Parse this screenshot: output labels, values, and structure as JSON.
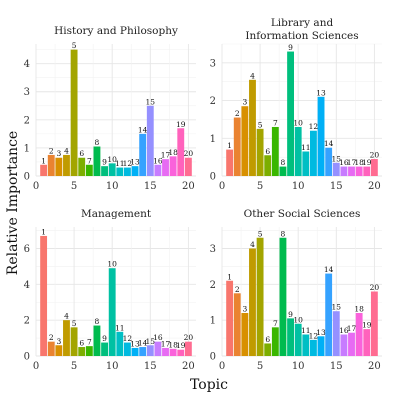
{
  "figure": {
    "xlabel": "Topic",
    "ylabel": "Relative Importance"
  },
  "chart_data": [
    {
      "type": "bar",
      "title": "History and Philosophy",
      "title_lines": [
        "History and Philosophy"
      ],
      "x": [
        1,
        2,
        3,
        4,
        5,
        6,
        7,
        8,
        9,
        10,
        11,
        12,
        13,
        14,
        15,
        16,
        17,
        18,
        19,
        20
      ],
      "values": [
        0.4,
        0.75,
        0.65,
        0.75,
        4.5,
        0.65,
        0.4,
        1.05,
        0.35,
        0.45,
        0.3,
        0.3,
        0.35,
        1.5,
        2.5,
        0.4,
        0.6,
        0.7,
        1.7,
        0.65
      ],
      "xlim": [
        0,
        21
      ],
      "xticks": [
        0,
        5,
        10,
        15,
        20
      ],
      "ylim": [
        0,
        4.7
      ],
      "yticks": [
        0,
        1,
        2,
        3,
        4
      ],
      "grid": true
    },
    {
      "type": "bar",
      "title": "Library and Information Sciences",
      "title_lines": [
        "Library and",
        "Information Sciences"
      ],
      "x": [
        1,
        2,
        3,
        4,
        5,
        6,
        7,
        8,
        9,
        10,
        11,
        12,
        13,
        14,
        15,
        16,
        17,
        18,
        19,
        20
      ],
      "values": [
        0.7,
        1.55,
        1.85,
        2.55,
        1.25,
        0.55,
        1.3,
        0.25,
        3.3,
        1.3,
        0.65,
        1.2,
        2.1,
        0.75,
        0.35,
        0.25,
        0.25,
        0.25,
        0.25,
        0.45
      ],
      "xlim": [
        0,
        21
      ],
      "xticks": [
        0,
        5,
        10,
        15,
        20
      ],
      "ylim": [
        0,
        3.5
      ],
      "yticks": [
        0,
        1,
        2,
        3
      ],
      "grid": true
    },
    {
      "type": "bar",
      "title": "Management",
      "title_lines": [
        "Management"
      ],
      "x": [
        1,
        2,
        3,
        4,
        5,
        6,
        7,
        8,
        9,
        10,
        11,
        12,
        13,
        14,
        15,
        16,
        17,
        18,
        19,
        20
      ],
      "values": [
        6.7,
        0.8,
        0.6,
        2.0,
        1.6,
        0.5,
        0.55,
        1.7,
        0.75,
        4.9,
        1.35,
        0.75,
        0.45,
        0.5,
        0.6,
        0.8,
        0.45,
        0.4,
        0.35,
        0.8
      ],
      "xlim": [
        0,
        21
      ],
      "xticks": [
        0,
        5,
        10,
        15,
        20
      ],
      "ylim": [
        0,
        7.2
      ],
      "yticks": [
        0,
        2,
        4,
        6
      ],
      "grid": true
    },
    {
      "type": "bar",
      "title": "Other Social Sciences",
      "title_lines": [
        "Other Social Sciences"
      ],
      "x": [
        1,
        2,
        3,
        4,
        5,
        6,
        7,
        8,
        9,
        10,
        11,
        12,
        13,
        14,
        15,
        16,
        17,
        18,
        19,
        20
      ],
      "values": [
        2.1,
        1.75,
        1.2,
        3.0,
        3.3,
        0.35,
        0.8,
        3.3,
        1.05,
        0.9,
        0.6,
        0.45,
        0.55,
        2.3,
        1.25,
        0.6,
        0.65,
        1.2,
        0.75,
        1.8
      ],
      "xlim": [
        0,
        21
      ],
      "xticks": [
        0,
        5,
        10,
        15,
        20
      ],
      "ylim": [
        0,
        3.6
      ],
      "yticks": [
        0,
        1,
        2,
        3
      ],
      "grid": true
    }
  ],
  "topic_colors": [
    "#F8766D",
    "#EA8331",
    "#D89000",
    "#C09B00",
    "#A3A500",
    "#7CAE00",
    "#39B600",
    "#00BB4E",
    "#00BF7D",
    "#00C1A3",
    "#00BFC4",
    "#00BAE0",
    "#00B0F6",
    "#35A2FF",
    "#9590FF",
    "#C77CFF",
    "#E76BF3",
    "#FA62DB",
    "#FF62BC",
    "#FF6C91"
  ]
}
